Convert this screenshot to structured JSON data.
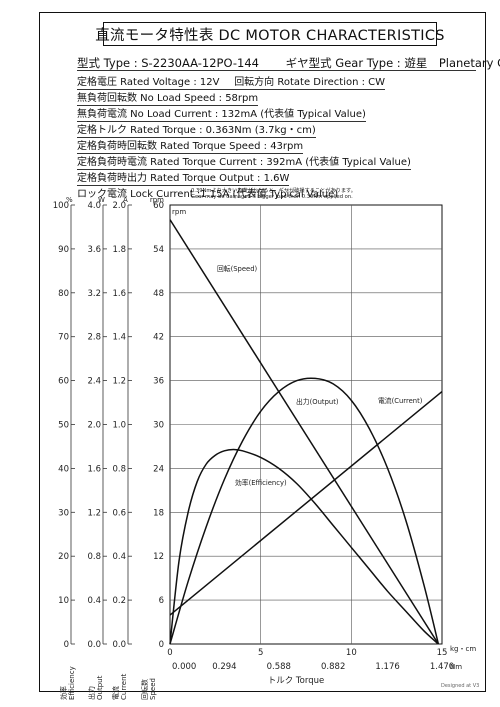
{
  "title": "直流モータ特性表 DC MOTOR CHARACTERISTICS",
  "header": {
    "type_label": "型式 Type : S-2230AA-12PO-144",
    "gear_label": "ギヤ型式 Gear Type : 遊星　Planetary Gear"
  },
  "specs": {
    "rated_voltage": "定格電圧 Rated Voltage : 12V",
    "rotate_direction": "回転方向 Rotate Direction : CW",
    "no_load_speed": "無負荷回転数 No Load Speed : 58rpm",
    "no_load_current": "無負荷電流 No Load Current : 132mA (代表値 Typical Value)",
    "rated_torque": "定格トルク Rated Torque : 0.363Nm (3.7kg・cm)",
    "rated_torque_speed": "定格負荷時回転数 Rated Torque Speed : 43rpm",
    "rated_torque_current": "定格負荷時電流 Rated Torque Current : 392mA (代表値 Typical Value)",
    "rated_torque_output": "定格負荷時出力 Rated Torque Output : 1.6W",
    "lock_current": "ロック電流 Lock Current :1.15A (代表値 Typical Value)"
  },
  "notes": {
    "line1": "0.39Nmより大きい負荷がかかると、ギヤが破損することがあります。",
    "line2": "Gear may be damaged if bigger load than 0.39Nm applied on."
  },
  "designed_by": "Designed at V3",
  "chart_data": {
    "type": "line",
    "xlabel": "トルク Torque",
    "x_unit_kgcm": "kg・cm",
    "x_unit_nm": "Nm",
    "x_ticks_kgcm": [
      "0",
      "5",
      "10",
      "15"
    ],
    "x_ticks_nm": [
      "0.000",
      "0.294",
      "0.588",
      "0.882",
      "1.176",
      "1.470"
    ],
    "xlim_kgcm": [
      0,
      15
    ],
    "grid": true,
    "y_axes": [
      {
        "name": "効率 Efficiency",
        "unit": "%",
        "ticks": [
          "0",
          "10",
          "20",
          "30",
          "40",
          "50",
          "60",
          "70",
          "80",
          "90",
          "100"
        ],
        "ylim": [
          0,
          100
        ]
      },
      {
        "name": "出力 Output",
        "unit": "W",
        "ticks": [
          "0.0",
          "0.4",
          "0.8",
          "1.2",
          "1.6",
          "2.0",
          "2.4",
          "2.8",
          "3.2",
          "3.6",
          "4.0"
        ],
        "ylim": [
          0,
          4
        ]
      },
      {
        "name": "電流 Current",
        "unit": "A",
        "ticks": [
          "0.0",
          "0.2",
          "0.4",
          "0.6",
          "0.8",
          "1.0",
          "1.2",
          "1.4",
          "1.6",
          "1.8",
          "2.0"
        ],
        "ylim": [
          0,
          2
        ]
      },
      {
        "name": "回転数 Speed",
        "unit": "rpm",
        "ticks": [
          "0",
          "6",
          "12",
          "18",
          "24",
          "30",
          "36",
          "42",
          "48",
          "54",
          "60"
        ],
        "ylim": [
          0,
          60
        ]
      }
    ],
    "series": [
      {
        "name": "回転(Speed)",
        "axis": "rpm",
        "x": [
          0,
          14.8
        ],
        "y": [
          58,
          0
        ]
      },
      {
        "name": "電流(Current)",
        "axis": "A",
        "x": [
          0,
          15
        ],
        "y": [
          0.132,
          1.15
        ]
      },
      {
        "name": "出力(Output)",
        "axis": "W",
        "x": [
          0,
          1,
          2,
          3,
          4,
          5,
          6,
          7,
          8,
          9,
          10,
          11,
          12,
          13,
          14,
          14.8
        ],
        "y": [
          0,
          0.57,
          1.07,
          1.5,
          1.85,
          2.12,
          2.3,
          2.4,
          2.42,
          2.37,
          2.22,
          1.96,
          1.6,
          1.13,
          0.54,
          0
        ]
      },
      {
        "name": "効率(Efficiency)",
        "axis": "%",
        "x": [
          0,
          0.5,
          1,
          1.5,
          2,
          2.5,
          3,
          3.5,
          4,
          5,
          6,
          7,
          8,
          9,
          10,
          11,
          12,
          13,
          14,
          14.8
        ],
        "y": [
          0,
          19,
          30,
          37,
          41,
          43,
          44,
          44.3,
          44,
          42.5,
          40,
          36.5,
          32,
          27,
          22,
          17,
          12,
          7.5,
          3,
          0
        ]
      }
    ]
  }
}
